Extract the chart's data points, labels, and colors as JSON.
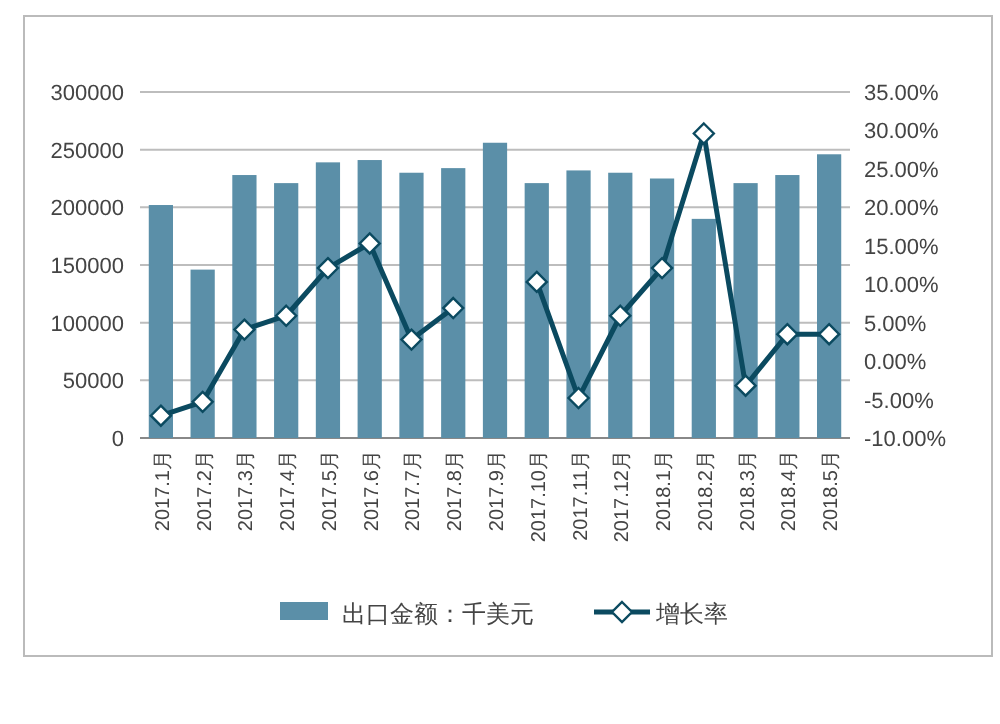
{
  "chart_data": {
    "type": "bar",
    "categories": [
      "2017.1月",
      "2017.2月",
      "2017.3月",
      "2017.4月",
      "2017.5月",
      "2017.6月",
      "2017.7月",
      "2017.8月",
      "2017.9月",
      "2017.10月",
      "2017.11月",
      "2017.12月",
      "2018.1月",
      "2018.2月",
      "2018.3月",
      "2018.4月",
      "2018.5月"
    ],
    "series": [
      {
        "name": "出口金额：千美元",
        "color": "#5b8fa8",
        "values": [
          202000,
          146000,
          228000,
          221000,
          239000,
          241000,
          230000,
          234000,
          256000,
          221000,
          232000,
          230000,
          225000,
          190000,
          221000,
          228000,
          246000
        ]
      },
      {
        "name": "增长率",
        "type": "line",
        "axis": "y2",
        "color": "#0b4a60",
        "marker": "diamond",
        "values": [
          -7.1,
          -5.3,
          4.1,
          5.9,
          12.1,
          15.3,
          2.8,
          6.9,
          null,
          10.3,
          -4.8,
          5.9,
          12.1,
          29.6,
          -3.2,
          3.5,
          3.5
        ]
      }
    ],
    "ylim": [
      0,
      300000
    ],
    "yticks": [
      0,
      50000,
      100000,
      150000,
      200000,
      250000,
      300000
    ],
    "y2lim": [
      -10,
      35
    ],
    "y2ticks": [
      {
        "value": -10,
        "label": "-10.00%"
      },
      {
        "value": -5,
        "label": "-5.00%"
      },
      {
        "value": 0,
        "label": "0.00%"
      },
      {
        "value": 5,
        "label": "5.00%"
      },
      {
        "value": 10,
        "label": "10.00%"
      },
      {
        "value": 15,
        "label": "15.00%"
      },
      {
        "value": 20,
        "label": "20.00%"
      },
      {
        "value": 25,
        "label": "25.00%"
      },
      {
        "value": 30,
        "label": "30.00%"
      },
      {
        "value": 35,
        "label": "35.00%"
      }
    ],
    "grid": "y",
    "legend": "bottom"
  }
}
